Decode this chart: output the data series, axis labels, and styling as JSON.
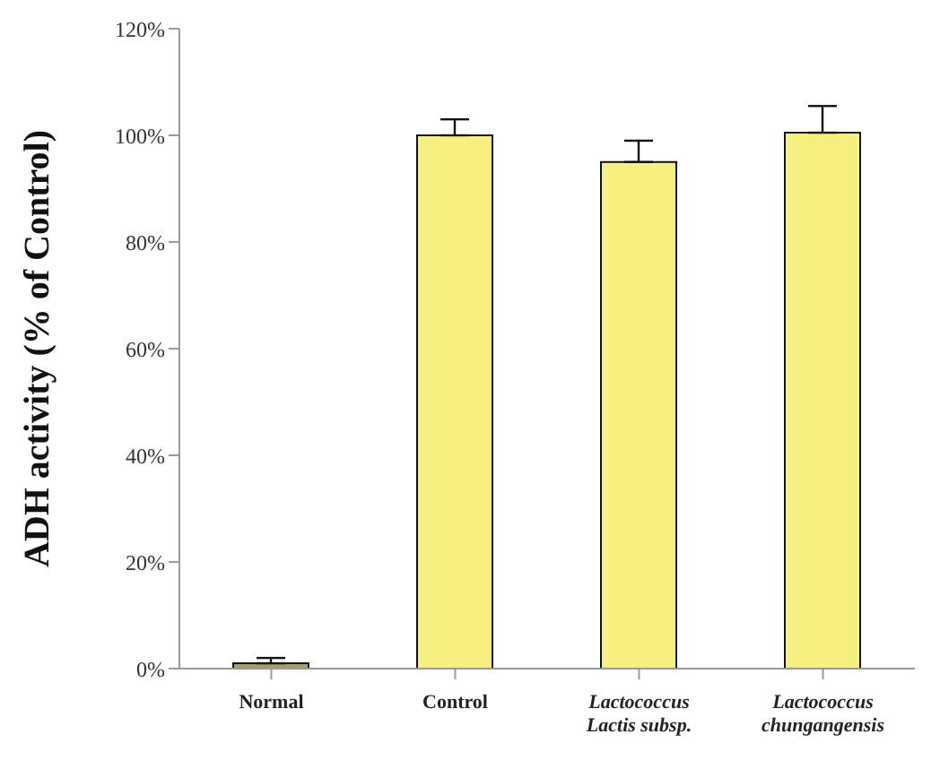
{
  "chart_data": {
    "type": "bar",
    "ylabel": "ADH activity (% of Control)",
    "categories": [
      "Normal",
      "Control",
      "Lactococcus Lactis subsp.",
      "Lactococcus chungangensis"
    ],
    "values": [
      1,
      100,
      95,
      100.5
    ],
    "colors": [
      "#a8a060",
      "#f7ef80",
      "#f7ef80",
      "#f7ef80"
    ],
    "errors": [
      [
        1,
        2
      ],
      [
        100,
        103
      ],
      [
        95,
        99
      ],
      [
        100.5,
        105.5
      ]
    ],
    "ylim": [
      0,
      120
    ],
    "yticks": [
      {
        "value": 0,
        "label": "0%"
      },
      {
        "value": 20,
        "label": "20%"
      },
      {
        "value": 40,
        "label": "40%"
      },
      {
        "value": 60,
        "label": "60%"
      },
      {
        "value": 80,
        "label": "80%"
      },
      {
        "value": 100,
        "label": "100%"
      },
      {
        "value": 120,
        "label": "120%"
      }
    ],
    "grid": false
  }
}
